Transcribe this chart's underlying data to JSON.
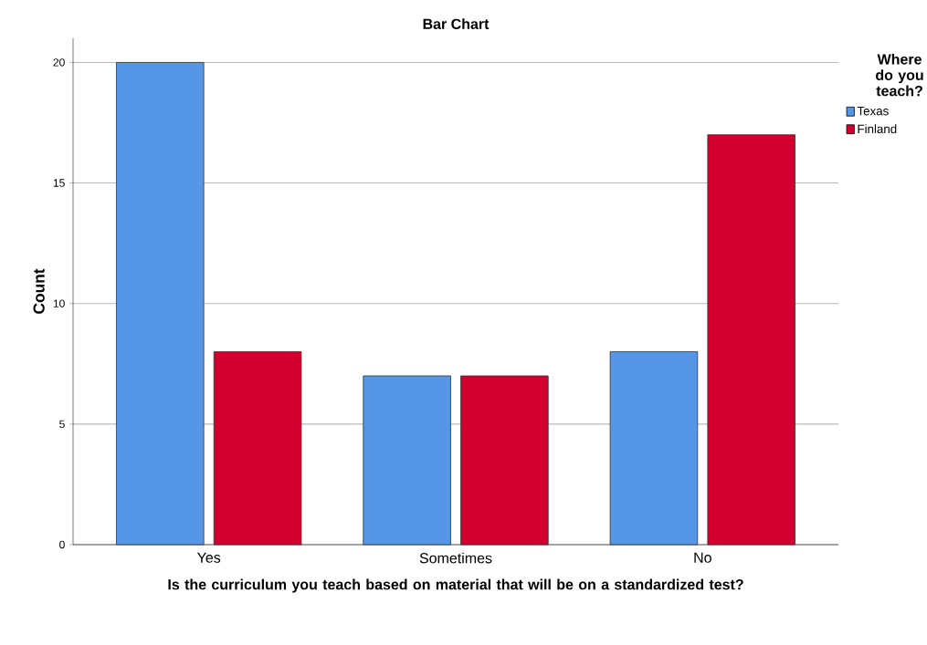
{
  "chart_data": {
    "type": "bar",
    "title": "Bar Chart",
    "xlabel": "Is the curriculum you teach based on material that will be on a standardized test?",
    "ylabel": "Count",
    "categories": [
      "Yes",
      "Sometimes",
      "No"
    ],
    "series": [
      {
        "name": "Texas",
        "color": "#5596e6",
        "values": [
          20,
          7,
          8
        ]
      },
      {
        "name": "Finland",
        "color": "#d3002f",
        "values": [
          8,
          7,
          17
        ]
      }
    ],
    "ylim": [
      0,
      21
    ],
    "yticks": [
      0,
      5,
      10,
      15,
      20
    ],
    "grid": "y",
    "legend": "top right",
    "legend_title": "Where do you teach?"
  }
}
